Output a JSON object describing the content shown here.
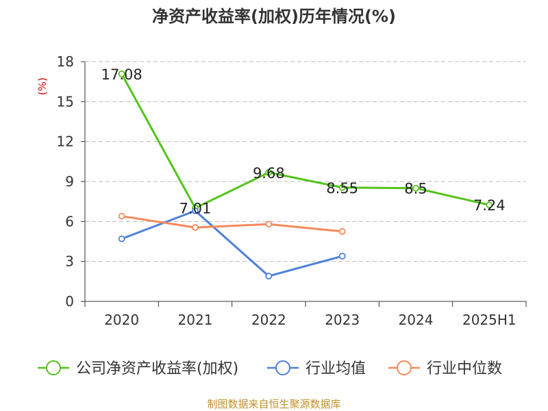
{
  "chart_data": {
    "type": "line",
    "title": "净资产收益率(加权)历年情况(%)",
    "ylabel": "(%)",
    "categories": [
      "2020",
      "2021",
      "2022",
      "2023",
      "2024",
      "2025H1"
    ],
    "ylim": [
      0,
      18
    ],
    "yticks": [
      "0",
      "3",
      "6",
      "9",
      "12",
      "15",
      "18"
    ],
    "grid": true,
    "legend_position": "bottom",
    "series": [
      {
        "name": "公司净资产收益率(加权)",
        "color": "#52c41a",
        "values": [
          17.08,
          7.01,
          9.68,
          8.55,
          8.5,
          7.24
        ],
        "labels": [
          "17.08",
          "7.01",
          "9.68",
          "8.55",
          "8.5",
          "7.24"
        ]
      },
      {
        "name": "行业均值",
        "color": "#4e7fdb",
        "values": [
          4.7,
          6.8,
          1.9,
          3.4,
          null,
          null
        ]
      },
      {
        "name": "行业中位数",
        "color": "#f5895a",
        "values": [
          6.4,
          5.55,
          5.8,
          5.25,
          null,
          null
        ]
      }
    ]
  },
  "source": "制图数据来自恒生聚源数据库"
}
